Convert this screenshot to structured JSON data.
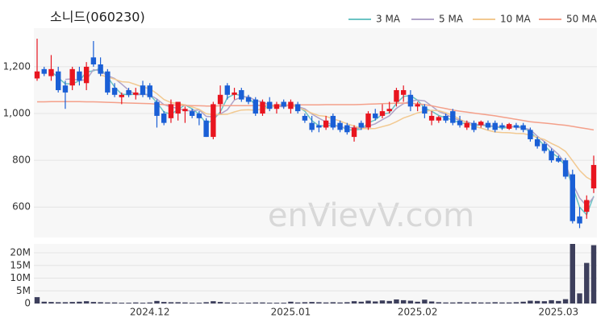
{
  "chart_data": [
    {
      "type": "candlestick",
      "title": "소니드(060230)",
      "watermark": "enVievV.com",
      "legend": "top-right",
      "grid": true,
      "up_color": "#e8151f",
      "down_color": "#1a5fd6",
      "ylim": [
        470,
        1365
      ],
      "yticks": [
        600,
        800,
        {
          "value": 1000,
          "label": "1,000"
        },
        {
          "value": 1200,
          "label": "1,200"
        }
      ],
      "open": [
        1150,
        1190,
        1160,
        1180,
        1120,
        1120,
        1180,
        1130,
        1240,
        1210,
        1180,
        1110,
        1070,
        1100,
        1080,
        1120,
        1120,
        1050,
        1000,
        980,
        1000,
        1010,
        1010,
        1000,
        970,
        900,
        1040,
        1120,
        1080,
        1100,
        1070,
        1060,
        1000,
        1050,
        1020,
        1050,
        1020,
        1040,
        990,
        960,
        950,
        940,
        990,
        960,
        950,
        900,
        960,
        940,
        1000,
        990,
        1010,
        1050,
        1080,
        1080,
        1030,
        1030,
        970,
        970,
        990,
        1010,
        970,
        940,
        960,
        950,
        960,
        960,
        950,
        935,
        950,
        950,
        930,
        890,
        870,
        840,
        810,
        800,
        740,
        560,
        580,
        680
      ],
      "high": [
        1320,
        1200,
        1250,
        1200,
        1140,
        1200,
        1200,
        1220,
        1310,
        1240,
        1190,
        1130,
        1090,
        1110,
        1110,
        1140,
        1130,
        1060,
        1010,
        1060,
        1050,
        1030,
        1020,
        1010,
        980,
        1050,
        1120,
        1130,
        1110,
        1110,
        1080,
        1070,
        1060,
        1070,
        1050,
        1060,
        1060,
        1050,
        1000,
        990,
        970,
        990,
        1000,
        970,
        960,
        950,
        970,
        1010,
        1020,
        1040,
        1050,
        1110,
        1120,
        1100,
        1050,
        1040,
        1010,
        990,
        1000,
        1020,
        990,
        970,
        970,
        970,
        970,
        970,
        960,
        960,
        960,
        960,
        940,
        900,
        880,
        850,
        820,
        810,
        760,
        600,
        650,
        820
      ],
      "low": [
        1140,
        1160,
        1140,
        1090,
        1020,
        1100,
        1120,
        1100,
        1200,
        1160,
        1080,
        1070,
        1040,
        1070,
        1060,
        1070,
        1060,
        940,
        950,
        960,
        970,
        960,
        980,
        950,
        900,
        890,
        1000,
        1060,
        1060,
        1050,
        1040,
        990,
        990,
        1010,
        1000,
        1020,
        1000,
        1000,
        960,
        920,
        920,
        930,
        930,
        920,
        910,
        880,
        930,
        930,
        970,
        980,
        1000,
        1030,
        1050,
        1010,
        1010,
        980,
        950,
        960,
        960,
        950,
        940,
        930,
        920,
        940,
        930,
        920,
        930,
        930,
        930,
        920,
        880,
        850,
        830,
        790,
        790,
        720,
        530,
        510,
        550,
        660
      ],
      "close": [
        1180,
        1170,
        1190,
        1100,
        1090,
        1190,
        1140,
        1200,
        1210,
        1170,
        1090,
        1080,
        1080,
        1080,
        1090,
        1080,
        1070,
        990,
        960,
        1040,
        1050,
        1020,
        990,
        980,
        900,
        1040,
        1080,
        1080,
        1090,
        1060,
        1050,
        1000,
        1050,
        1020,
        1040,
        1030,
        1050,
        1010,
        970,
        930,
        940,
        970,
        940,
        930,
        920,
        940,
        940,
        1000,
        980,
        1010,
        1020,
        1100,
        1100,
        1030,
        1040,
        1000,
        990,
        985,
        970,
        960,
        950,
        960,
        930,
        965,
        940,
        930,
        940,
        955,
        940,
        930,
        890,
        860,
        840,
        800,
        795,
        730,
        540,
        530,
        630,
        780
      ],
      "series": [
        {
          "name": "3 MA",
          "color": "#6cc4c4",
          "values": [
            null,
            null,
            1180,
            1153,
            1127,
            1127,
            1140,
            1177,
            1183,
            1193,
            1157,
            1113,
            1083,
            1080,
            1083,
            1083,
            1080,
            1047,
            1007,
            997,
            1017,
            1037,
            1020,
            997,
            957,
            973,
            1007,
            1067,
            1083,
            1077,
            1067,
            1037,
            1033,
            1023,
            1037,
            1030,
            1040,
            1030,
            1010,
            970,
            947,
            947,
            950,
            947,
            930,
            930,
            933,
            960,
            973,
            997,
            1003,
            1043,
            1073,
            1077,
            1057,
            1023,
            1010,
            992,
            982,
            972,
            960,
            957,
            947,
            952,
            945,
            945,
            937,
            942,
            945,
            942,
            920,
            893,
            863,
            833,
            812,
            775,
            688,
            600,
            567,
            647
          ]
        },
        {
          "name": "5 MA",
          "color": "#b0a3c8",
          "values": [
            null,
            null,
            null,
            null,
            1146,
            1148,
            1142,
            1144,
            1188,
            1182,
            1162,
            1150,
            1126,
            1100,
            1080,
            1082,
            1080,
            1062,
            1038,
            1028,
            1022,
            1012,
            1012,
            1016,
            988,
            986,
            998,
            1016,
            1058,
            1070,
            1072,
            1056,
            1050,
            1036,
            1032,
            1028,
            1038,
            1030,
            1020,
            998,
            980,
            964,
            950,
            942,
            940,
            940,
            934,
            946,
            956,
            974,
            990,
            1022,
            1042,
            1052,
            1058,
            1054,
            1032,
            1009,
            997,
            981,
            971,
            965,
            954,
            953,
            949,
            945,
            943,
            946,
            941,
            939,
            931,
            903,
            880,
            852,
            825,
            785,
            701,
            639,
            605,
            643
          ]
        },
        {
          "name": "10 MA",
          "color": "#f2c991",
          "values": [
            null,
            null,
            null,
            null,
            null,
            null,
            null,
            null,
            null,
            1165,
            1156,
            1147,
            1136,
            1134,
            1124,
            1113,
            1106,
            1085,
            1060,
            1047,
            1043,
            1037,
            1028,
            1018,
            999,
            995,
            996,
            997,
            1007,
            1015,
            1016,
            1014,
            1020,
            1024,
            1038,
            1037,
            1034,
            1027,
            1015,
            1002,
            991,
            988,
            977,
            968,
            956,
            947,
            936,
            935,
            936,
            944,
            952,
            965,
            981,
            991,
            1003,
            1009,
            1014,
            1012,
            1004,
            992,
            975,
            961,
            944,
            938,
            928,
            921,
            919,
            918,
            915,
            914,
            908,
            898,
            889,
            872,
            858,
            838,
            798,
            757,
            727,
            711
          ]
        },
        {
          "name": "50 MA",
          "color": "#f4a08a",
          "values": [
            1050,
            1050,
            1051,
            1051,
            1051,
            1051,
            1051,
            1050,
            1050,
            1049,
            1048,
            1047,
            1046,
            1045,
            1044,
            1043,
            1042,
            1040,
            1038,
            1037,
            1036,
            1035,
            1034,
            1033,
            1032,
            1032,
            1033,
            1034,
            1034,
            1034,
            1034,
            1034,
            1035,
            1035,
            1036,
            1036,
            1037,
            1037,
            1037,
            1037,
            1037,
            1038,
            1038,
            1038,
            1038,
            1038,
            1039,
            1040,
            1041,
            1042,
            1043,
            1044,
            1045,
            1044,
            1042,
            1038,
            1033,
            1027,
            1021,
            1015,
            1010,
            1006,
            1002,
            998,
            994,
            990,
            985,
            980,
            975,
            970,
            965,
            962,
            959,
            956,
            953,
            950,
            945,
            940,
            935,
            930
          ]
        }
      ]
    },
    {
      "type": "bar",
      "color": "#3d3f5c",
      "grid": true,
      "ylim": [
        0,
        23500000
      ],
      "yticks": [
        0,
        {
          "value": 5000000,
          "label": "5M"
        },
        {
          "value": 10000000,
          "label": "10M"
        },
        {
          "value": 15000000,
          "label": "15M"
        },
        {
          "value": 20000000,
          "label": "20M"
        }
      ],
      "categories": [
        null,
        null,
        null,
        null,
        null,
        null,
        null,
        null,
        null,
        null,
        null,
        null,
        null,
        null,
        null,
        null,
        "2024.12",
        null,
        null,
        null,
        null,
        null,
        null,
        null,
        null,
        null,
        null,
        null,
        null,
        null,
        null,
        null,
        null,
        null,
        null,
        null,
        "2025.01",
        null,
        null,
        null,
        null,
        null,
        null,
        null,
        null,
        null,
        null,
        null,
        null,
        null,
        null,
        null,
        null,
        null,
        "2025.02",
        null,
        null,
        null,
        null,
        null,
        null,
        null,
        null,
        null,
        null,
        null,
        null,
        null,
        null,
        null,
        null,
        null,
        null,
        null,
        "2025.03",
        null,
        null,
        null,
        null,
        null
      ],
      "values": [
        2500000,
        700000,
        600000,
        500000,
        500000,
        600000,
        700000,
        900000,
        600000,
        500000,
        400000,
        400000,
        300000,
        300000,
        400000,
        300000,
        400000,
        1000000,
        600000,
        500000,
        500000,
        400000,
        300000,
        300000,
        500000,
        900000,
        600000,
        400000,
        300000,
        300000,
        300000,
        400000,
        400000,
        300000,
        300000,
        300000,
        700000,
        400000,
        500000,
        600000,
        500000,
        400000,
        500000,
        400000,
        500000,
        900000,
        700000,
        1100000,
        800000,
        1200000,
        1000000,
        1600000,
        1300000,
        1100000,
        700000,
        1500000,
        800000,
        500000,
        400000,
        400000,
        500000,
        400000,
        500000,
        400000,
        400000,
        500000,
        400000,
        400000,
        500000,
        700000,
        1100000,
        1000000,
        900000,
        1300000,
        1000000,
        1700000,
        23500000,
        4000000,
        16000000,
        23000000
      ]
    }
  ]
}
